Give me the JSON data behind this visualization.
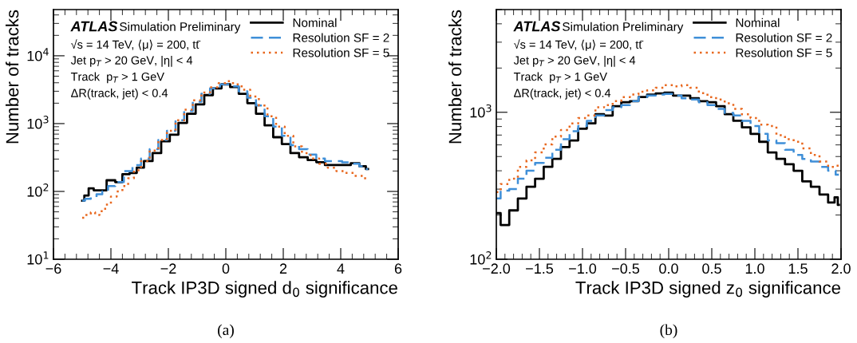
{
  "chart_data": [
    {
      "type": "step",
      "xlabel": "Track IP3D signed d$_{0}$ significance",
      "ylabel": "Number of tracks",
      "log": "y",
      "legend": "top right",
      "xlim": [
        -6,
        6
      ],
      "xticks": [
        {
          "value": -6,
          "label": "−6"
        },
        {
          "value": -4,
          "label": "−4"
        },
        {
          "value": -2,
          "label": "−2"
        },
        0,
        2,
        4,
        6
      ],
      "ylim": [
        10,
        48000
      ],
      "yticks": [
        {
          "value": 10,
          "label": "10$^{1}$"
        },
        {
          "value": 100,
          "label": "10$^{2}$"
        },
        {
          "value": 1000,
          "label": "10$^{3}$"
        },
        {
          "value": 10000,
          "label": "10$^{4}$"
        }
      ],
      "annotations": [
        "ATLAS",
        "Simulation Preliminary",
        "√s = 14 TeV, ⟨μ⟩ = 200, tt̄",
        "Jet p$_{T}$ > 20 GeV, |η| < 4",
        "Track  p$_{T}$ > 1 GeV",
        "ΔR(track, jet) < 0.4",
        "(a)"
      ],
      "series": [
        {
          "name": "Nominal",
          "color": "#000000",
          "line_style": "solid",
          "x": [
            -5,
            -4.85,
            -4.7,
            -4.5,
            -4.3,
            -4.0,
            -3.7,
            -3.5,
            -3.2,
            -3.0,
            -2.7,
            -2.4,
            -2.1,
            -1.8,
            -1.5,
            -1.2,
            -0.9,
            -0.6,
            -0.3,
            0,
            0.3,
            0.6,
            0.9,
            1.2,
            1.5,
            1.8,
            2.1,
            2.4,
            2.7,
            3.0,
            3.3,
            3.6,
            3.9,
            4.2,
            4.5,
            4.8,
            4.95
          ],
          "values": [
            73,
            87,
            111,
            104,
            104,
            146,
            137,
            179,
            187,
            224,
            280,
            367,
            548,
            687,
            1025,
            1400,
            1920,
            2630,
            3300,
            3790,
            3450,
            2750,
            2000,
            1400,
            940,
            630,
            500,
            367,
            320,
            290,
            270,
            245,
            245,
            245,
            260,
            235,
            214
          ]
        },
        {
          "name": "Resolution SF = 2",
          "color": "#3f8fd8",
          "line_style": "dashed",
          "x": [
            -5,
            -4.8,
            -4.6,
            -4.4,
            -4.2,
            -4.0,
            -3.7,
            -3.4,
            -3.1,
            -2.8,
            -2.5,
            -2.2,
            -1.9,
            -1.6,
            -1.3,
            -1.0,
            -0.7,
            -0.4,
            0,
            0.3,
            0.6,
            0.9,
            1.2,
            1.5,
            1.8,
            2.1,
            2.4,
            2.7,
            3.0,
            3.3,
            3.6,
            3.9,
            4.2,
            4.5,
            4.8,
            4.95
          ],
          "values": [
            73,
            78,
            82,
            91,
            100,
            120,
            137,
            200,
            245,
            306,
            420,
            574,
            780,
            1120,
            1530,
            2100,
            2750,
            3300,
            3790,
            3550,
            3000,
            2400,
            1850,
            1280,
            900,
            660,
            480,
            420,
            350,
            306,
            280,
            280,
            268,
            256,
            235,
            214
          ]
        },
        {
          "name": "Resolution SF = 5",
          "color": "#e8681f",
          "line_style": "dotted",
          "x": [
            -5,
            -4.8,
            -4.6,
            -4.5,
            -4.3,
            -4.1,
            -3.9,
            -3.7,
            -3.5,
            -3.3,
            -3.1,
            -2.8,
            -2.5,
            -2.2,
            -1.9,
            -1.6,
            -1.3,
            -1.0,
            -0.7,
            -0.4,
            -0.1,
            0.1,
            0.4,
            0.7,
            1.0,
            1.3,
            1.6,
            1.9,
            2.2,
            2.5,
            2.8,
            3.1,
            3.4,
            3.7,
            4.0,
            4.3,
            4.6,
            4.95
          ],
          "values": [
            41,
            45,
            49,
            45,
            51,
            64,
            84,
            100,
            120,
            156,
            205,
            280,
            400,
            574,
            780,
            1120,
            1600,
            2200,
            2870,
            3420,
            3950,
            4220,
            3790,
            3150,
            2500,
            1850,
            1280,
            900,
            660,
            460,
            367,
            306,
            256,
            224,
            200,
            187,
            170,
            156
          ]
        }
      ]
    },
    {
      "type": "step",
      "xlabel": "Track IP3D signed z$_{0}$ significance",
      "ylabel": "Number of tracks",
      "log": "y",
      "legend": "top right",
      "xlim": [
        -2,
        2
      ],
      "xticks": [
        {
          "value": -2,
          "label": "−2.0"
        },
        {
          "value": -1.5,
          "label": "−1.5"
        },
        {
          "value": -1,
          "label": "−1.0"
        },
        {
          "value": -0.5,
          "label": "−0.5"
        },
        {
          "value": 0,
          "label": "0.0"
        },
        {
          "value": 0.5,
          "label": "0.5"
        },
        {
          "value": 1,
          "label": "1.0"
        },
        {
          "value": 1.5,
          "label": "1.5"
        },
        {
          "value": 2,
          "label": "2.0"
        }
      ],
      "ylim": [
        100,
        5000
      ],
      "yticks": [
        {
          "value": 100,
          "label": "10$^{2}$"
        },
        {
          "value": 1000,
          "label": "10$^{3}$"
        }
      ],
      "annotations": [
        "ATLAS",
        "Simulation Preliminary",
        "√s = 14 TeV, ⟨μ⟩ = 200, tt̄",
        "Jet p$_{T}$ > 20 GeV, |η| < 4",
        "Track  p$_{T}$ > 1 GeV",
        "ΔR(track, jet) < 0.4",
        "(b)"
      ],
      "series": [
        {
          "name": "Nominal",
          "color": "#000000",
          "line_style": "solid",
          "x": [
            -2,
            -1.9,
            -1.8,
            -1.7,
            -1.6,
            -1.5,
            -1.4,
            -1.3,
            -1.2,
            -1.1,
            -1.0,
            -0.9,
            -0.8,
            -0.7,
            -0.6,
            -0.5,
            -0.4,
            -0.3,
            -0.2,
            -0.1,
            0,
            0.1,
            0.2,
            0.3,
            0.4,
            0.5,
            0.6,
            0.7,
            0.8,
            0.9,
            1.0,
            1.1,
            1.2,
            1.3,
            1.4,
            1.5,
            1.6,
            1.7,
            1.8,
            1.9,
            1.95,
            1.975
          ],
          "values": [
            206,
            171,
            215,
            259,
            311,
            353,
            425,
            482,
            580,
            643,
            774,
            840,
            971,
            951,
            1100,
            1170,
            1190,
            1270,
            1320,
            1345,
            1360,
            1300,
            1300,
            1245,
            1190,
            1170,
            1100,
            971,
            875,
            790,
            713,
            630,
            533,
            482,
            443,
            400,
            339,
            311,
            276,
            243,
            264,
            234
          ]
        },
        {
          "name": "Resolution SF = 2",
          "color": "#3f8fd8",
          "line_style": "dashed",
          "x": [
            -2,
            -1.9,
            -1.8,
            -1.7,
            -1.6,
            -1.5,
            -1.4,
            -1.3,
            -1.2,
            -1.1,
            -1.0,
            -0.9,
            -0.8,
            -0.7,
            -0.6,
            -0.5,
            -0.4,
            -0.3,
            -0.2,
            -0.1,
            0,
            0.1,
            0.2,
            0.3,
            0.4,
            0.5,
            0.6,
            0.7,
            0.8,
            0.9,
            1.0,
            1.1,
            1.2,
            1.3,
            1.4,
            1.5,
            1.6,
            1.7,
            1.8,
            1.9,
            1.975
          ],
          "values": [
            259,
            293,
            300,
            353,
            400,
            452,
            491,
            556,
            656,
            743,
            806,
            875,
            951,
            1035,
            1080,
            1120,
            1190,
            1270,
            1300,
            1320,
            1335,
            1300,
            1245,
            1220,
            1170,
            1120,
            1055,
            990,
            951,
            875,
            806,
            713,
            643,
            616,
            556,
            512,
            482,
            462,
            425,
            400,
            376
          ]
        },
        {
          "name": "Resolution SF = 5",
          "color": "#e8681f",
          "line_style": "dotted",
          "x": [
            -2,
            -1.9,
            -1.8,
            -1.7,
            -1.6,
            -1.5,
            -1.4,
            -1.3,
            -1.2,
            -1.1,
            -1.0,
            -0.9,
            -0.8,
            -0.7,
            -0.6,
            -0.5,
            -0.4,
            -0.3,
            -0.2,
            -0.1,
            0,
            0.1,
            0.2,
            0.3,
            0.4,
            0.5,
            0.6,
            0.7,
            0.8,
            0.9,
            1.0,
            1.1,
            1.2,
            1.3,
            1.4,
            1.5,
            1.6,
            1.7,
            1.8,
            1.9,
            1.975
          ],
          "values": [
            287,
            325,
            353,
            425,
            471,
            533,
            604,
            684,
            758,
            840,
            913,
            951,
            1080,
            1120,
            1190,
            1270,
            1320,
            1380,
            1410,
            1470,
            1530,
            1500,
            1530,
            1470,
            1350,
            1270,
            1220,
            1150,
            1055,
            971,
            913,
            823,
            806,
            698,
            656,
            630,
            568,
            512,
            462,
            425,
            433
          ]
        }
      ]
    }
  ]
}
